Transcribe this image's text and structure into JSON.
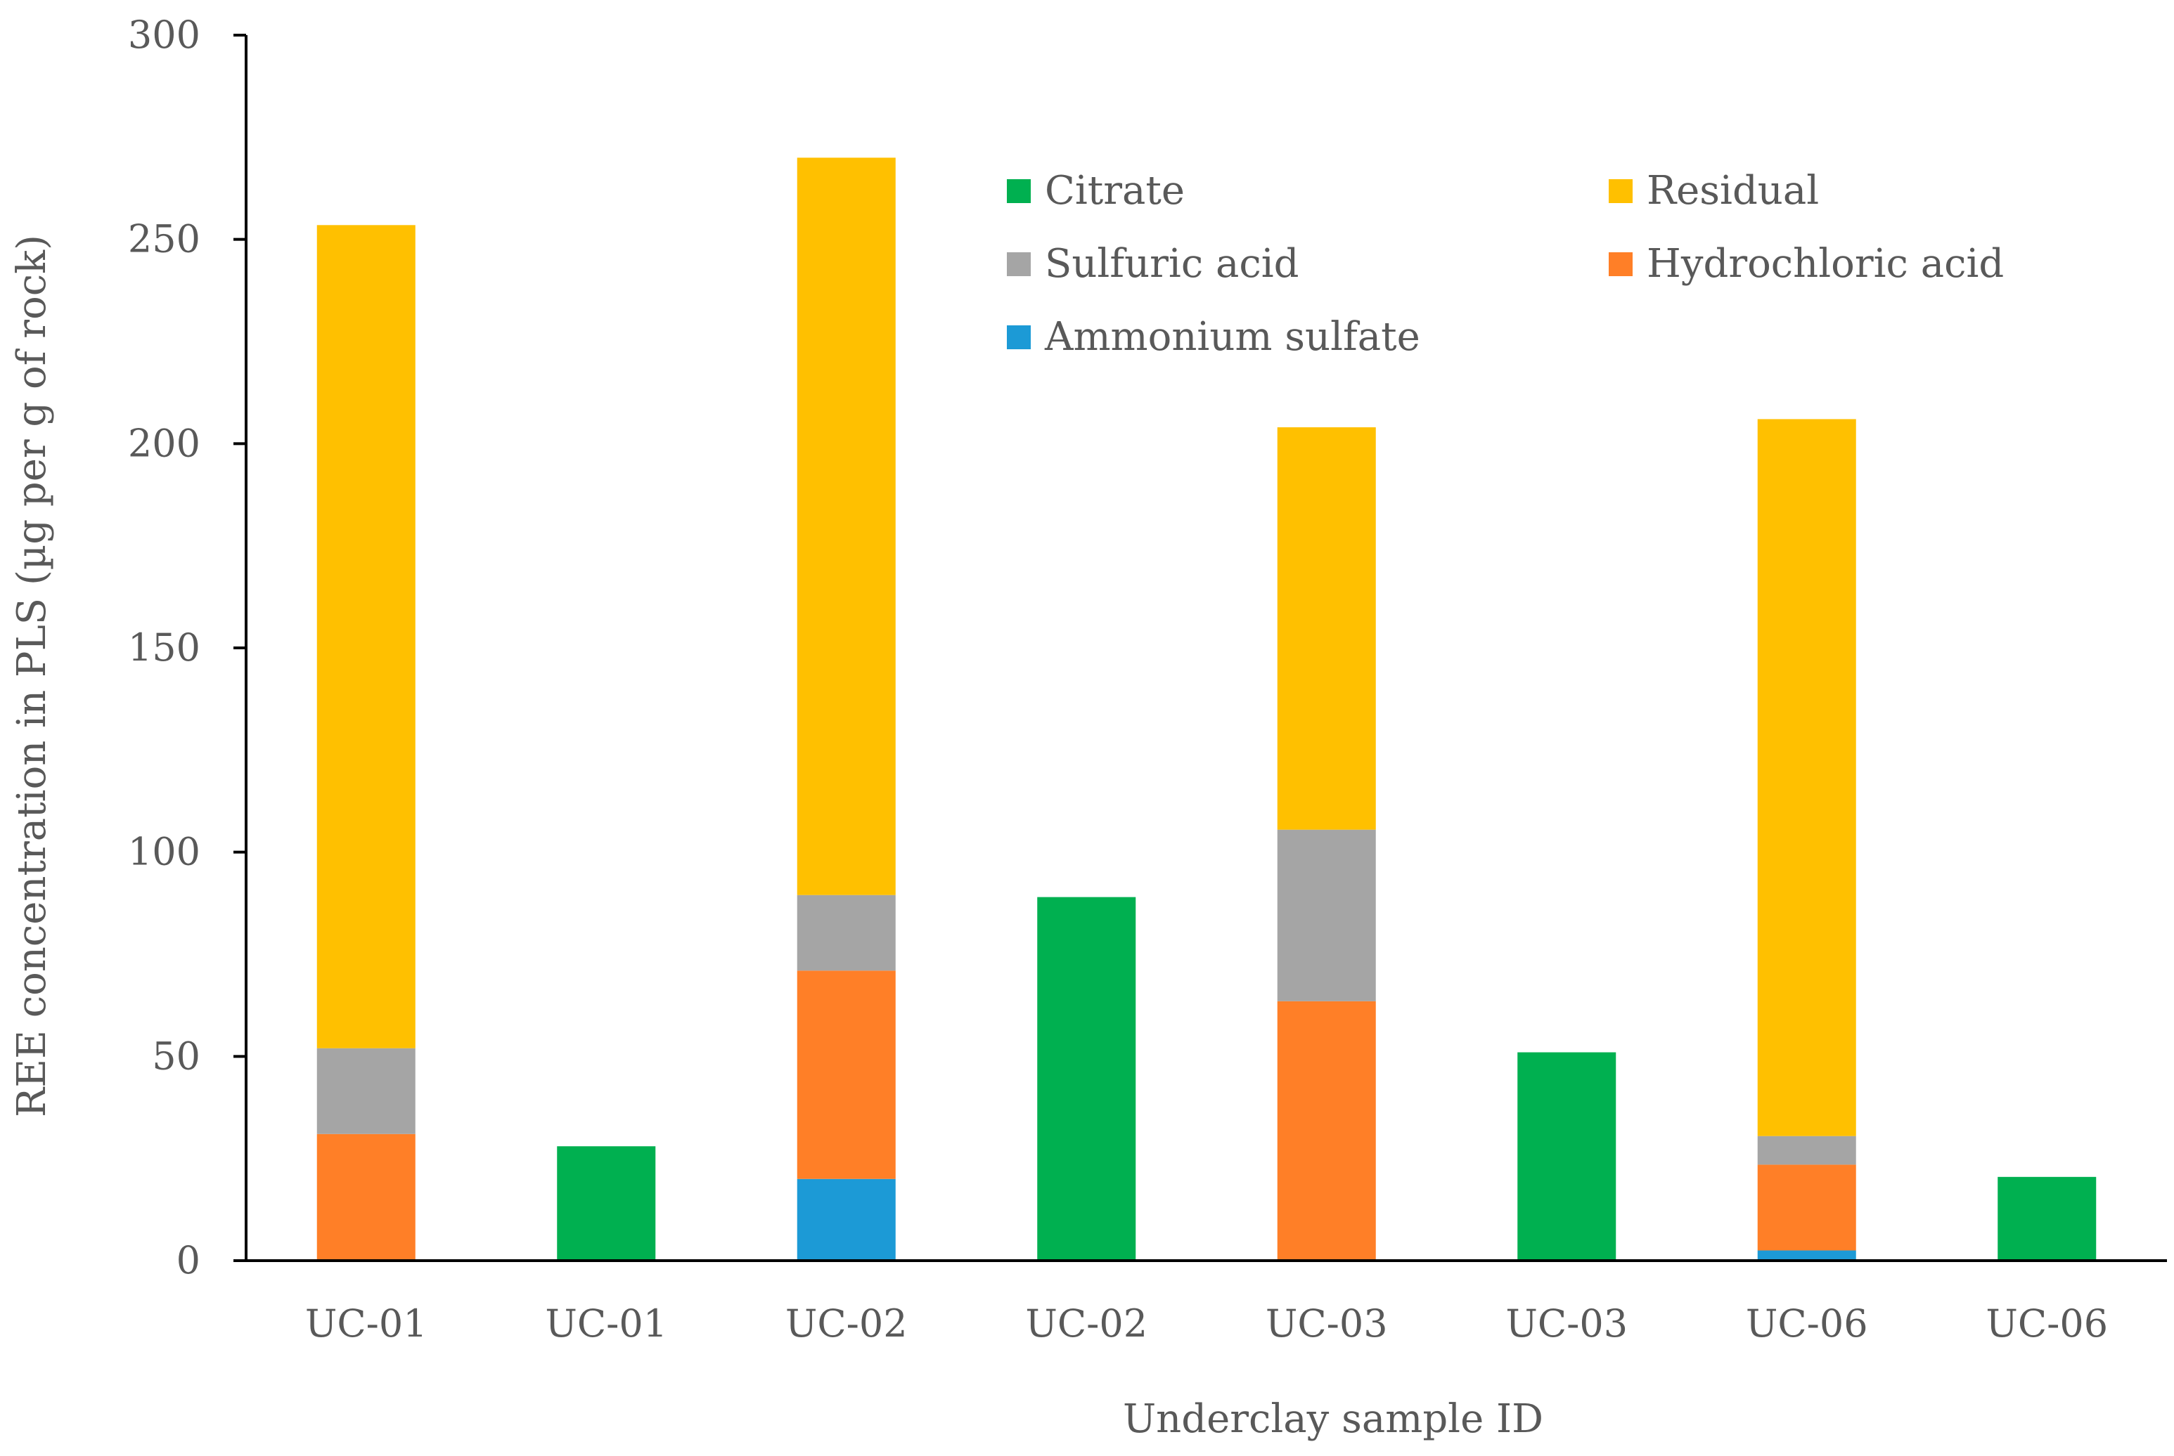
{
  "chart_data": {
    "type": "bar",
    "stacked": true,
    "title": "",
    "xlabel": "Underclay sample ID",
    "ylabel": "REE concentration in PLS (µg per g of rock)",
    "ylim": [
      0,
      300
    ],
    "yticks": [
      0,
      50,
      100,
      150,
      200,
      250,
      300
    ],
    "grid": false,
    "legend_position": "top-right",
    "categories": [
      "UC-01",
      "UC-01",
      "UC-02",
      "UC-02",
      "UC-03",
      "UC-03",
      "UC-06",
      "UC-06"
    ],
    "series": [
      {
        "name": "Ammonium sulfate",
        "color": "#1C9AD6",
        "values": [
          0,
          0,
          20,
          0,
          0,
          0,
          2.5,
          0
        ]
      },
      {
        "name": "Hydrochloric acid",
        "color": "#FF7F27",
        "values": [
          31,
          0,
          51,
          0,
          63.5,
          0,
          21,
          0
        ]
      },
      {
        "name": "Sulfuric acid",
        "color": "#A5A5A5",
        "values": [
          21,
          0,
          18.5,
          0,
          42,
          0,
          7,
          0
        ]
      },
      {
        "name": "Residual",
        "color": "#FFC000",
        "values": [
          201.5,
          0,
          180.5,
          0,
          98.5,
          0,
          175.5,
          0
        ]
      },
      {
        "name": "Citrate",
        "color": "#00B050",
        "values": [
          0,
          28,
          0,
          89,
          0,
          51,
          0,
          20.5
        ]
      }
    ],
    "legend_order": [
      "Citrate",
      "Residual",
      "Sulfuric acid",
      "Hydrochloric acid",
      "Ammonium sulfate"
    ]
  }
}
